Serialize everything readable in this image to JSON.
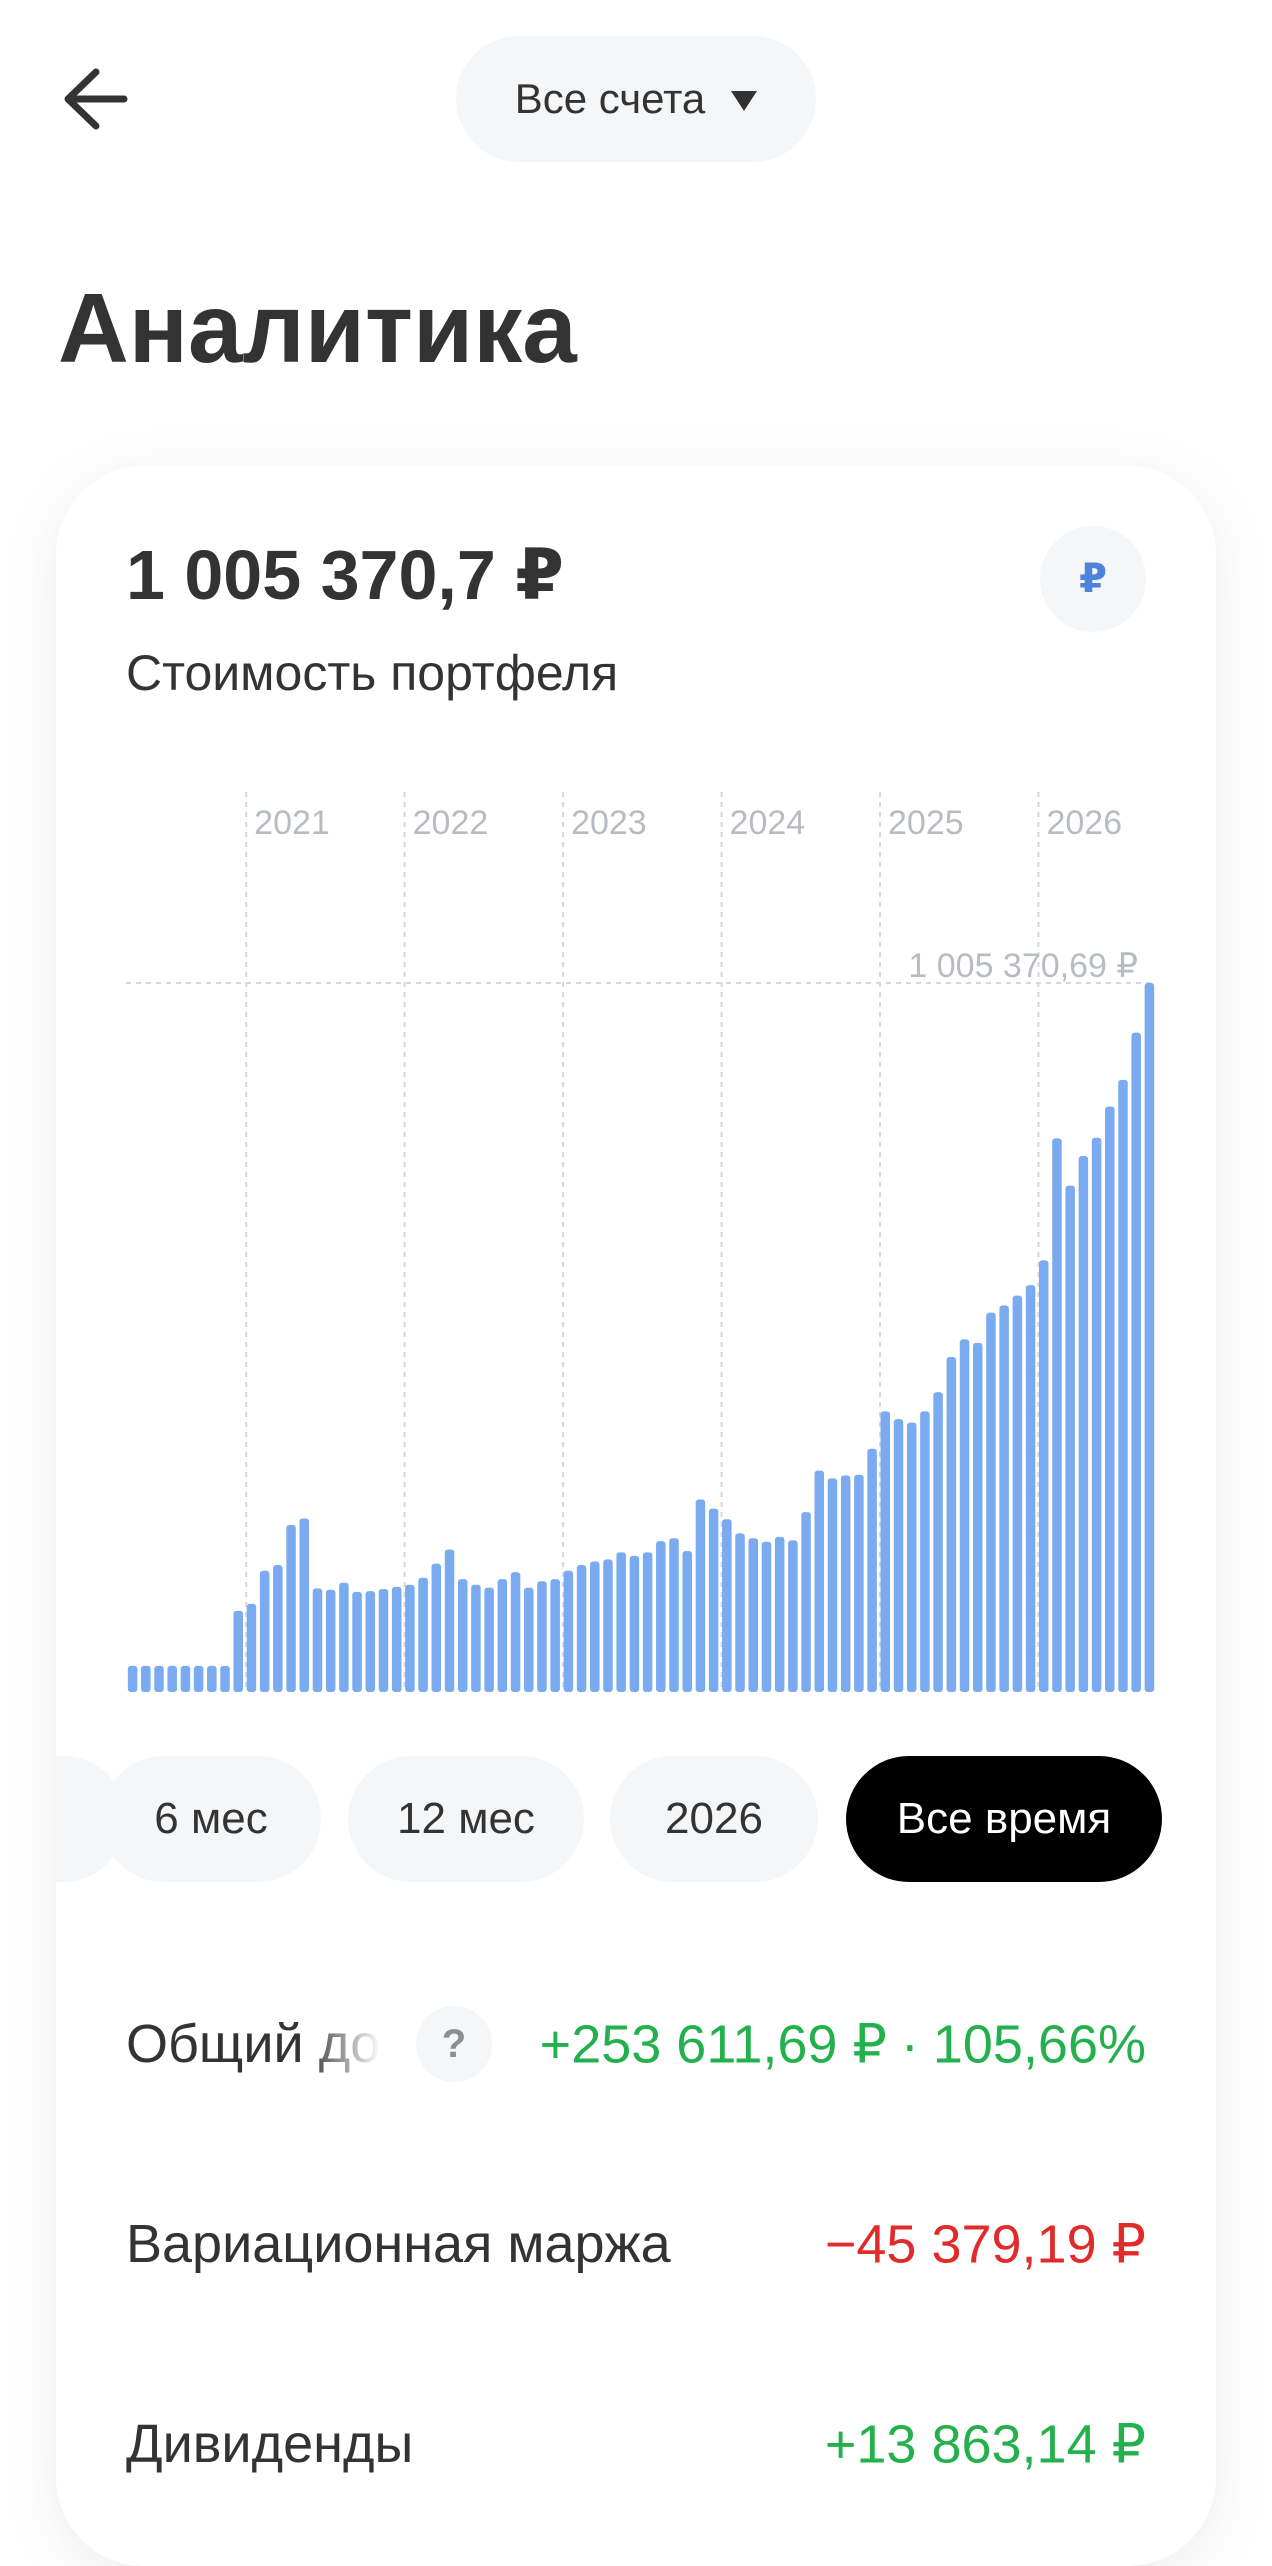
{
  "header": {
    "account_selector": "Все счета",
    "icons": {
      "back": "arrow-left-icon",
      "dropdown": "triangle-down-icon"
    }
  },
  "page_title": "Аналитика",
  "portfolio": {
    "value": "1 005 370,7 ₽",
    "caption": "Стоимость портфеля",
    "currency_button": "₽"
  },
  "chart_data": {
    "type": "bar",
    "x_axis_labels": [
      "2021",
      "2022",
      "2023",
      "2024",
      "2025",
      "2026"
    ],
    "y_max_label": "1 005 370,69 ₽",
    "bar_color": "#7aaaf0",
    "ylim": [
      0,
      1005370.69
    ],
    "values": [
      37000,
      37000,
      37000,
      37000,
      37000,
      37000,
      37000,
      37000,
      115000,
      125000,
      172000,
      180000,
      237000,
      246000,
      147000,
      145000,
      155000,
      142000,
      143000,
      146000,
      149000,
      152000,
      162000,
      182000,
      202000,
      160000,
      152000,
      148000,
      160000,
      170000,
      148000,
      157000,
      160000,
      172000,
      180000,
      185000,
      188000,
      198000,
      193000,
      198000,
      214000,
      218000,
      200000,
      273000,
      260000,
      245000,
      225000,
      218000,
      213000,
      220000,
      215000,
      255000,
      314000,
      303000,
      307000,
      308000,
      345000,
      398000,
      387000,
      382000,
      398000,
      425000,
      475000,
      500000,
      495000,
      538000,
      548000,
      562000,
      577000,
      612000,
      785000,
      718000,
      760000,
      786000,
      830000,
      868000,
      935000,
      1005370.69
    ]
  },
  "periods": [
    {
      "label": "",
      "active": false
    },
    {
      "label": "6 мес",
      "active": false
    },
    {
      "label": "12 мес",
      "active": false
    },
    {
      "label": "2026",
      "active": false
    },
    {
      "label": "Все время",
      "active": true
    }
  ],
  "stats": {
    "total_income": {
      "label": "Общий доход",
      "help": "?",
      "amount": "+253 611,69 ₽",
      "separator": "·",
      "percent": "105,66%"
    },
    "variation_margin": {
      "label": "Вариационная маржа",
      "value": "−45 379,19 ₽"
    },
    "dividends": {
      "label": "Дивиденды",
      "value": "+13 863,14 ₽"
    }
  },
  "colors": {
    "accent": "#4d82dd",
    "positive": "#22b14c",
    "negative": "#e02b2b",
    "active_chip": "#000000"
  }
}
